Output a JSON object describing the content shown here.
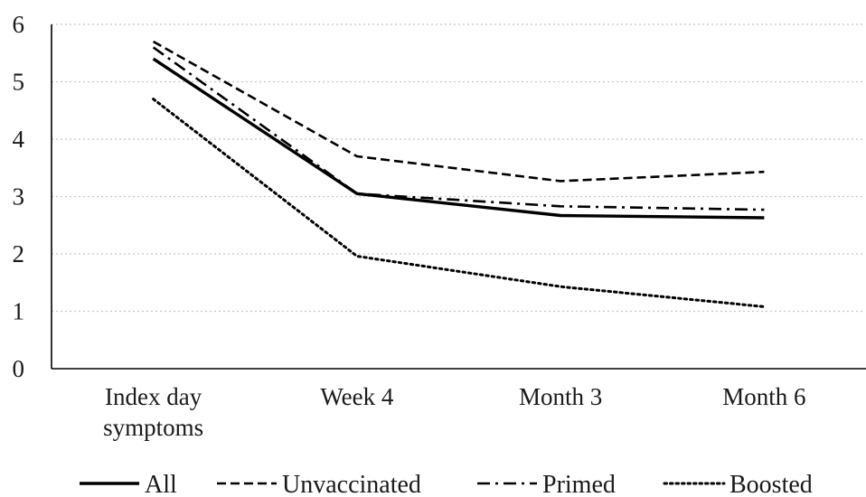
{
  "chart_data": {
    "type": "line",
    "categories": [
      [
        "Index day",
        "symptoms"
      ],
      [
        "Week 4"
      ],
      [
        "Month 3"
      ],
      [
        "Month 6"
      ]
    ],
    "y_ticks": [
      "0",
      "1",
      "2",
      "3",
      "4",
      "5",
      "6"
    ],
    "ylim": [
      0,
      6
    ],
    "grid": true,
    "legend_position": "bottom",
    "series": [
      {
        "name": "All",
        "values": [
          5.4,
          3.05,
          2.67,
          2.63
        ],
        "style": "solid"
      },
      {
        "name": "Unvaccinated",
        "values": [
          5.7,
          3.7,
          3.27,
          3.43
        ],
        "style": "dashed"
      },
      {
        "name": "Primed",
        "values": [
          5.6,
          3.05,
          2.83,
          2.77
        ],
        "style": "dashdot"
      },
      {
        "name": "Boosted",
        "values": [
          4.7,
          1.96,
          1.43,
          1.08
        ],
        "style": "dotted"
      }
    ],
    "colors": {
      "lines": "#000000",
      "grid": "#c8c8c8"
    }
  }
}
